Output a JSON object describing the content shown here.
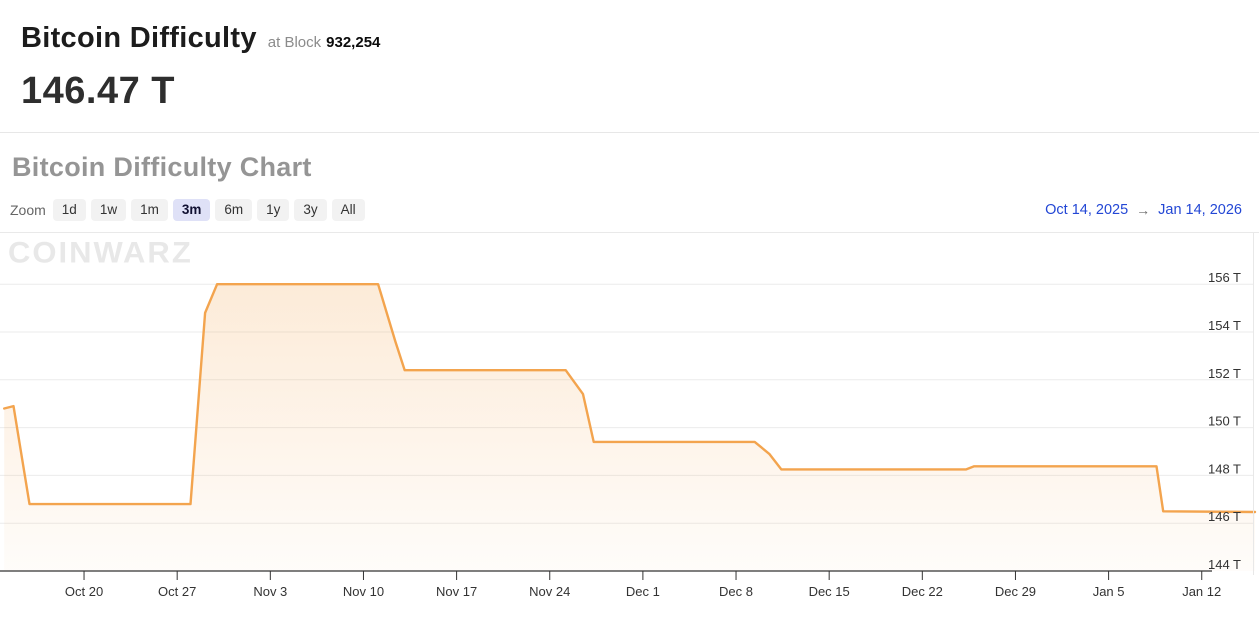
{
  "header": {
    "title": "Bitcoin Difficulty",
    "at_block_label": "at Block",
    "block_number": "932,254",
    "current_value": "146.47 T"
  },
  "chart_section": {
    "title": "Bitcoin Difficulty Chart",
    "zoom_label": "Zoom",
    "zoom_buttons": [
      "1d",
      "1w",
      "1m",
      "3m",
      "6m",
      "1y",
      "3y",
      "All"
    ],
    "zoom_selected": "3m",
    "date_from": "Oct 14, 2025",
    "range_arrow": "→",
    "date_to": "Jan 14, 2026",
    "watermark": "CoinWarz"
  },
  "chart_data": {
    "type": "area",
    "title": "Bitcoin Difficulty Chart",
    "series_name": "Bitcoin Difficulty",
    "unit": "T",
    "x_range": [
      "Oct 14, 2025",
      "Jan 14, 2026"
    ],
    "ylim": [
      144,
      157
    ],
    "grid": true,
    "legend": false,
    "line_color": "#f3a44e",
    "grid_color": "#ebebeb",
    "axis_color": "#333333",
    "y_ticks": [
      {
        "label": "156 T",
        "value": 156
      },
      {
        "label": "154 T",
        "value": 154
      },
      {
        "label": "152 T",
        "value": 152
      },
      {
        "label": "150 T",
        "value": 150
      },
      {
        "label": "148 T",
        "value": 148
      },
      {
        "label": "146 T",
        "value": 146
      },
      {
        "label": "144 T",
        "value": 144
      }
    ],
    "x_ticks": [
      {
        "label": "Oct 20",
        "day": 6
      },
      {
        "label": "Oct 27",
        "day": 13
      },
      {
        "label": "Nov 3",
        "day": 20
      },
      {
        "label": "Nov 10",
        "day": 27
      },
      {
        "label": "Nov 17",
        "day": 34
      },
      {
        "label": "Nov 24",
        "day": 41
      },
      {
        "label": "Dec 1",
        "day": 48
      },
      {
        "label": "Dec 8",
        "day": 55
      },
      {
        "label": "Dec 15",
        "day": 62
      },
      {
        "label": "Dec 22",
        "day": 69
      },
      {
        "label": "Dec 29",
        "day": 76
      },
      {
        "label": "Jan 5",
        "day": 83
      },
      {
        "label": "Jan 12",
        "day": 90
      }
    ],
    "points": [
      {
        "date": "Oct 14",
        "day": 0,
        "value": 150.8
      },
      {
        "date": "Oct 15",
        "day": 0.7,
        "value": 150.9
      },
      {
        "date": "Oct 16",
        "day": 1.9,
        "value": 146.8
      },
      {
        "date": "Oct 28",
        "day": 14.0,
        "value": 146.8
      },
      {
        "date": "Oct 29",
        "day": 15.1,
        "value": 154.8
      },
      {
        "date": "Oct 30",
        "day": 16.0,
        "value": 156.0
      },
      {
        "date": "Nov 11",
        "day": 28.1,
        "value": 156.0
      },
      {
        "date": "Nov 12",
        "day": 29.4,
        "value": 153.6
      },
      {
        "date": "Nov 13",
        "day": 30.1,
        "value": 152.4
      },
      {
        "date": "Nov 25",
        "day": 42.2,
        "value": 152.4
      },
      {
        "date": "Nov 26",
        "day": 43.5,
        "value": 151.4
      },
      {
        "date": "Nov 27",
        "day": 44.3,
        "value": 149.4
      },
      {
        "date": "Dec 9",
        "day": 56.4,
        "value": 149.4
      },
      {
        "date": "Dec 10",
        "day": 57.5,
        "value": 148.9
      },
      {
        "date": "Dec 11",
        "day": 58.4,
        "value": 148.25
      },
      {
        "date": "Dec 24",
        "day": 72.3,
        "value": 148.25
      },
      {
        "date": "Dec 25",
        "day": 72.9,
        "value": 148.38
      },
      {
        "date": "Jan 8",
        "day": 86.6,
        "value": 148.38
      },
      {
        "date": "Jan 9",
        "day": 87.1,
        "value": 146.5
      },
      {
        "date": "Jan 14",
        "day": 94.0,
        "value": 146.47
      }
    ]
  }
}
